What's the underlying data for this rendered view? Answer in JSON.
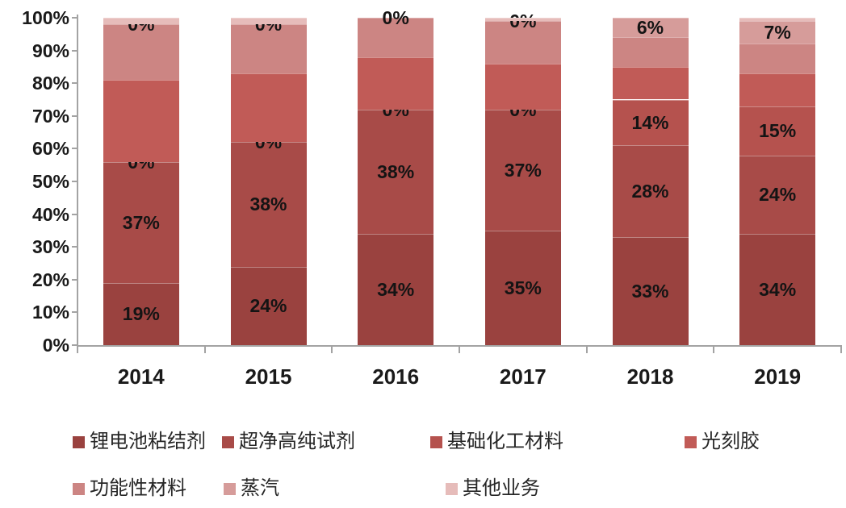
{
  "chart_data": {
    "type": "bar",
    "subtype": "stacked-100-percent",
    "title": "",
    "categories": [
      "2014",
      "2015",
      "2016",
      "2017",
      "2018",
      "2019"
    ],
    "series": [
      {
        "name": "锂电池粘结剂",
        "color": "#9a423f",
        "values": [
          19,
          24,
          34,
          35,
          33,
          34
        ]
      },
      {
        "name": "超净高纯试剂",
        "color": "#a84b48",
        "values": [
          37,
          38,
          38,
          37,
          28,
          24
        ]
      },
      {
        "name": "基础化工材料",
        "color": "#b5524e",
        "values": [
          0,
          0,
          0,
          0,
          14,
          15
        ]
      },
      {
        "name": "光刻胶",
        "color": "#c15b57",
        "values": [
          25,
          21,
          16,
          14,
          10,
          10
        ]
      },
      {
        "name": "功能性材料",
        "color": "#cc8583",
        "values": [
          17,
          15,
          12,
          13,
          9,
          9
        ]
      },
      {
        "name": "蒸汽",
        "color": "#d69c9a",
        "values": [
          0,
          0,
          0,
          0,
          6,
          7
        ]
      },
      {
        "name": "其他业务",
        "color": "#e6bcba",
        "values": [
          2,
          2,
          0,
          1,
          0,
          1
        ]
      }
    ],
    "labeled_series": [
      0,
      1,
      2,
      5
    ],
    "label_suffix": "%",
    "y_axis": {
      "min": 0,
      "max": 100,
      "step": 10,
      "tick_labels": [
        "0%",
        "10%",
        "20%",
        "30%",
        "40%",
        "50%",
        "60%",
        "70%",
        "80%",
        "90%",
        "100%"
      ]
    },
    "legend": {
      "position": "bottom",
      "rows": [
        [
          0,
          1,
          2,
          3
        ],
        [
          4,
          5,
          6
        ]
      ]
    },
    "grid": false
  },
  "colors": {
    "axis": "#a3a3a3",
    "label_text": "#141414",
    "background": "#ffffff"
  }
}
